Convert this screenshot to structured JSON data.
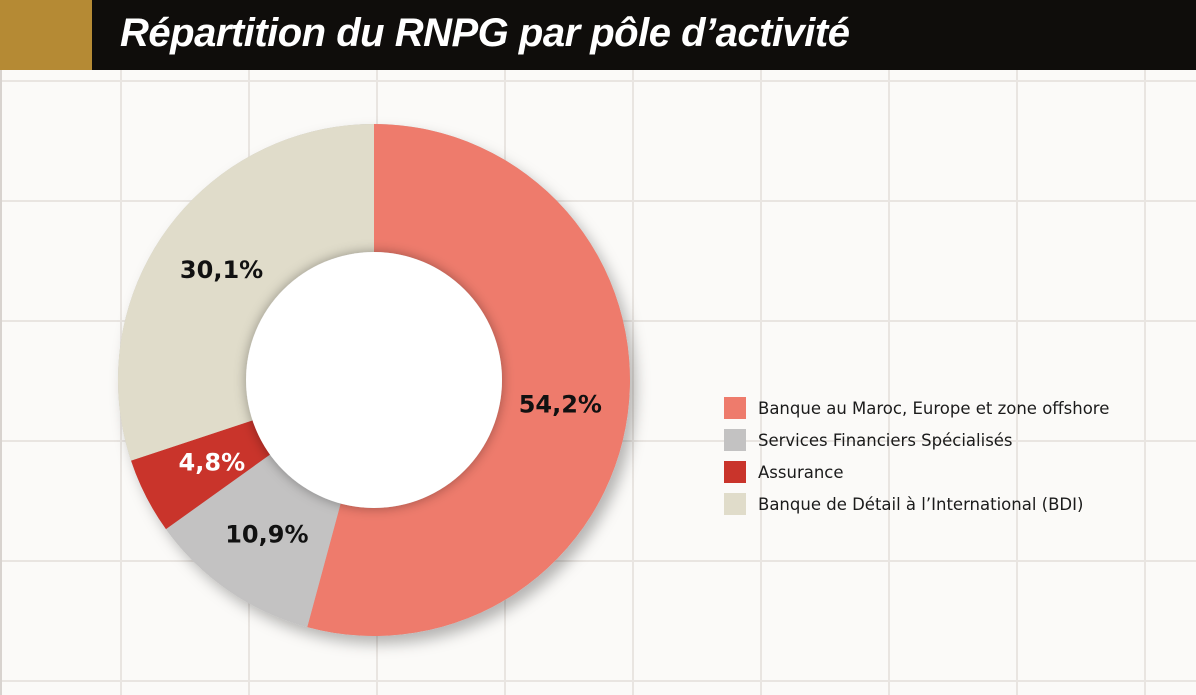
{
  "header": {
    "title": "Répartition du RNPG par pôle d’activité",
    "accent_color": "#b58a34",
    "background_color": "#0f0d0b"
  },
  "chart_data": {
    "type": "pie",
    "donut": true,
    "title": "Répartition du RNPG par pôle d’activité",
    "grid": true,
    "legend_position": "right",
    "series": [
      {
        "name": "Banque au Maroc, Europe et zone offshore",
        "value": 54.2,
        "label": "54,2%",
        "color": "#ee7b6c",
        "label_color": "#111111"
      },
      {
        "name": "Services Financiers Spécialisés",
        "value": 10.9,
        "label": "10,9%",
        "color": "#c3c2c2",
        "label_color": "#111111"
      },
      {
        "name": "Assurance",
        "value": 4.8,
        "label": "4,8%",
        "color": "#c9342b",
        "label_color": "#ffffff"
      },
      {
        "name": "Banque de Détail à l’International (BDI)",
        "value": 30.1,
        "label": "30,1%",
        "color": "#e0dcca",
        "label_color": "#111111"
      }
    ]
  }
}
